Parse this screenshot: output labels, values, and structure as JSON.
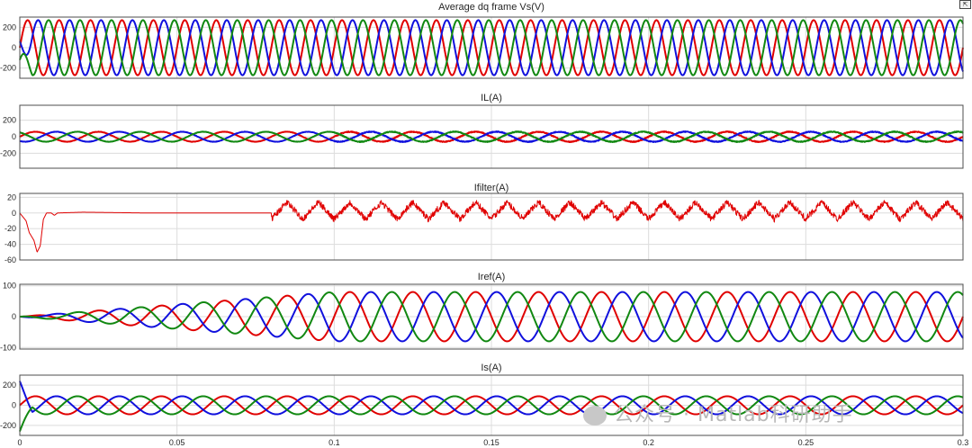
{
  "figure": {
    "expand_icon": "expand-axes-icon",
    "watermark": "公众号 · Matlab科研助手",
    "watermark_icon": "wechat-logo-icon"
  },
  "colors": {
    "phase_a": "#e00000",
    "phase_b": "#1010dd",
    "phase_c": "#118811",
    "grid": "#dcdcdc",
    "axis": "#262626"
  },
  "chart_data": [
    {
      "type": "line",
      "title": "Average dq frame    Vs(V)",
      "xlabel": "",
      "ylabel": "",
      "xlim": [
        0,
        0.3
      ],
      "ylim": [
        -300,
        300
      ],
      "yticks": [
        200,
        0,
        -200
      ],
      "ytick_labels": [
        "200",
        "0",
        "-200"
      ],
      "grid": true,
      "show_xticklabels": false,
      "series": [
        {
          "color": "#e00000",
          "amplitude": 270,
          "phase_deg": 0,
          "frequency_hz": 100,
          "startup": "fixed"
        },
        {
          "color": "#1010dd",
          "amplitude": 270,
          "phase_deg": -120,
          "frequency_hz": 100,
          "startup": "transient"
        },
        {
          "color": "#118811",
          "amplitude": 270,
          "phase_deg": 120,
          "frequency_hz": 100,
          "startup": "transient"
        }
      ]
    },
    {
      "type": "line",
      "title": "IL(A)",
      "xlabel": "",
      "ylabel": "",
      "xlim": [
        0,
        0.3
      ],
      "ylim": [
        -380,
        380
      ],
      "yticks": [
        200,
        0,
        -200
      ],
      "ytick_labels": [
        "200",
        "0",
        "-200"
      ],
      "grid": true,
      "show_xticklabels": false,
      "series": [
        {
          "color": "#e00000",
          "amplitude": 60,
          "phase_deg": 0,
          "frequency_hz": 50
        },
        {
          "color": "#1010dd",
          "amplitude": 60,
          "phase_deg": -120,
          "frequency_hz": 50
        },
        {
          "color": "#118811",
          "amplitude": 60,
          "phase_deg": 120,
          "frequency_hz": 50
        }
      ]
    },
    {
      "type": "line",
      "title": "Ifilter(A)",
      "xlabel": "",
      "ylabel": "",
      "xlim": [
        0,
        0.3
      ],
      "ylim": [
        -60,
        25
      ],
      "yticks": [
        20,
        0,
        -20,
        -40,
        -60
      ],
      "ytick_labels": [
        "20",
        "0",
        "-20",
        "-40",
        "-60"
      ],
      "grid": true,
      "show_xticklabels": false,
      "series": [
        {
          "color": "#e00000",
          "startup_points": [
            [
              0,
              0
            ],
            [
              0.002,
              -10
            ],
            [
              0.003,
              -25
            ],
            [
              0.0045,
              -35
            ],
            [
              0.0055,
              -50
            ],
            [
              0.0065,
              -42
            ],
            [
              0.0075,
              -8
            ],
            [
              0.0085,
              0
            ],
            [
              0.01,
              0
            ],
            [
              0.011,
              -3
            ],
            [
              0.012,
              0
            ],
            [
              0.02,
              1
            ],
            [
              0.04,
              0
            ],
            [
              0.08,
              0
            ]
          ],
          "ripple_start": 0.08,
          "ripple_amplitude": 12,
          "ripple_period": 0.01
        }
      ]
    },
    {
      "type": "line",
      "title": "Iref(A)",
      "xlabel": "",
      "ylabel": "",
      "xlim": [
        0,
        0.3
      ],
      "ylim": [
        -105,
        105
      ],
      "yticks": [
        100,
        0,
        -100
      ],
      "ytick_labels": [
        "100",
        "0",
        "-100"
      ],
      "grid": true,
      "show_xticklabels": false,
      "series": [
        {
          "color": "#e00000",
          "amplitude": 80,
          "phase_deg": 0,
          "frequency_hz": 50,
          "ramp_time": 0.1
        },
        {
          "color": "#1010dd",
          "amplitude": 80,
          "phase_deg": -120,
          "frequency_hz": 50,
          "ramp_time": 0.1
        },
        {
          "color": "#118811",
          "amplitude": 80,
          "phase_deg": 120,
          "frequency_hz": 50,
          "ramp_time": 0.1
        }
      ]
    },
    {
      "type": "line",
      "title": "Is(A)",
      "xlabel": "",
      "ylabel": "",
      "xlim": [
        0,
        0.3
      ],
      "ylim": [
        -300,
        300
      ],
      "yticks": [
        200,
        0,
        -200
      ],
      "ytick_labels": [
        "200",
        "0",
        "-200"
      ],
      "grid": true,
      "show_xticklabels": true,
      "xticks": [
        0,
        0.05,
        0.1,
        0.15,
        0.2,
        0.25,
        0.3
      ],
      "xtick_labels": [
        "0",
        "0.05",
        "0.1",
        "0.15",
        "0.2",
        "0.25",
        "0.3"
      ],
      "series": [
        {
          "color": "#e00000",
          "amplitude": 90,
          "phase_deg": 0,
          "frequency_hz": 50
        },
        {
          "color": "#1010dd",
          "amplitude": 90,
          "phase_deg": -120,
          "frequency_hz": 50,
          "startup_spike": 240
        },
        {
          "color": "#118811",
          "amplitude": 90,
          "phase_deg": 120,
          "frequency_hz": 50,
          "startup_spike": -260
        }
      ]
    }
  ]
}
